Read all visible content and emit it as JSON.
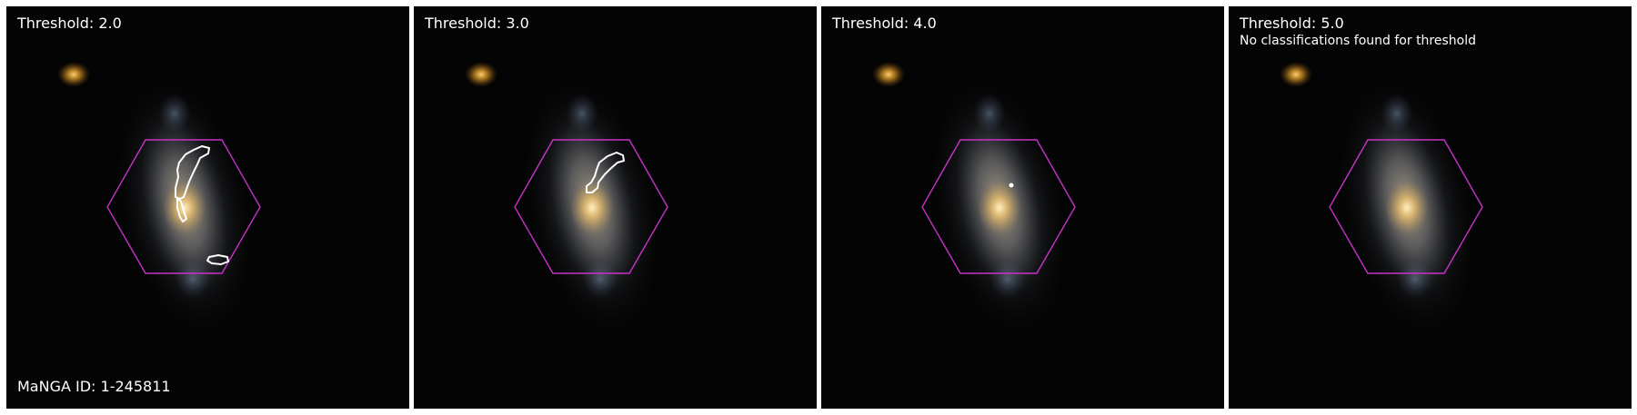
{
  "panels": [
    {
      "threshold_label": "Threshold: 2.0"
    },
    {
      "threshold_label": "Threshold: 3.0"
    },
    {
      "threshold_label": "Threshold: 4.0"
    },
    {
      "threshold_label": "Threshold: 5.0",
      "note": "No classifications found for threshold"
    }
  ],
  "manga_id_label": "MaNGA ID: 1-245811",
  "colors": {
    "background": "#040404",
    "hexagon": "#c832c8",
    "contour": "#ffffff",
    "text": "#ffffff"
  }
}
